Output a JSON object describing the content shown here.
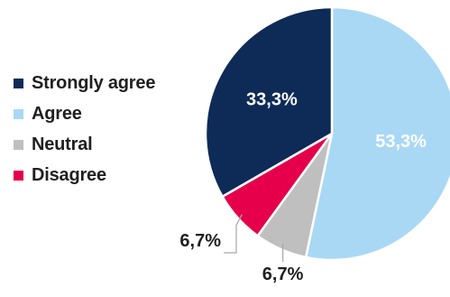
{
  "chart_data": {
    "type": "pie",
    "title": "",
    "slices": [
      {
        "label": "Agree",
        "value": 53.3,
        "display": "53,3%",
        "color": "#a9d8f5"
      },
      {
        "label": "Neutral",
        "value": 6.7,
        "display": "6,7%",
        "color": "#bfbfbf"
      },
      {
        "label": "Disagree",
        "value": 6.7,
        "display": "6,7%",
        "color": "#e6004c"
      },
      {
        "label": "Strongly agree",
        "value": 33.3,
        "display": "33,3%",
        "color": "#0e2a57"
      }
    ],
    "start_angle_deg": 0,
    "direction": "clockwise",
    "legend": {
      "position": "left",
      "items": [
        {
          "label": "Strongly agree",
          "color": "#0e2a57"
        },
        {
          "label": "Agree",
          "color": "#a9d8f5"
        },
        {
          "label": "Neutral",
          "color": "#bfbfbf"
        },
        {
          "label": "Disagree",
          "color": "#e6004c"
        }
      ]
    },
    "label_colors": {
      "inside": "#ffffff",
      "outside": "#1f1f1f",
      "leader_line": "#a6a6a6"
    }
  }
}
